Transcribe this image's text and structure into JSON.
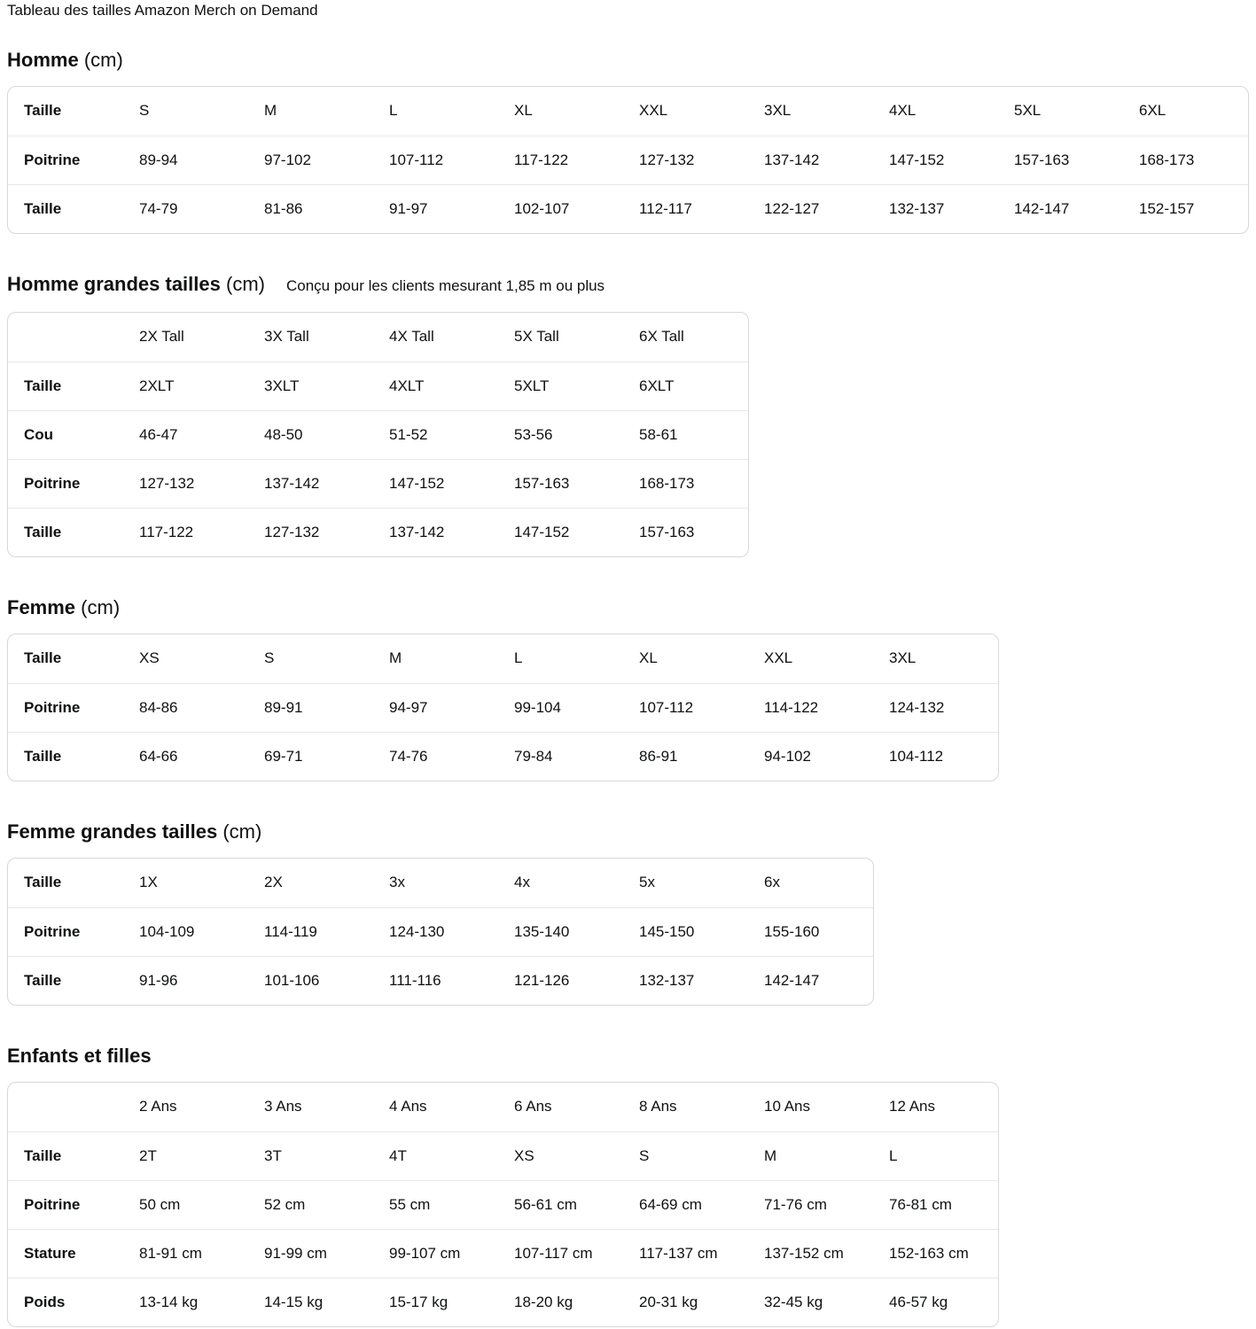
{
  "page_title": "Tableau des tailles Amazon Merch on Demand",
  "colors": {
    "text": "#0F1111",
    "border": "#D5D9D9",
    "separator": "#E7E7E7",
    "background": "#FFFFFF"
  },
  "sections": [
    {
      "title": "Homme",
      "title_suffix": "(cm)",
      "subtitle": "",
      "table": {
        "header": [
          "Taille",
          "S",
          "M",
          "L",
          "XL",
          "XXL",
          "3XL",
          "4XL",
          "5XL",
          "6XL"
        ],
        "rows": [
          {
            "label": "Poitrine",
            "values": [
              "89-94",
              "97-102",
              "107-112",
              "117-122",
              "127-132",
              "137-142",
              "147-152",
              "157-163",
              "168-173"
            ]
          },
          {
            "label": "Taille",
            "values": [
              "74-79",
              "81-86",
              "91-97",
              "102-107",
              "112-117",
              "122-127",
              "132-137",
              "142-147",
              "152-157"
            ]
          }
        ]
      }
    },
    {
      "title": "Homme grandes tailles",
      "title_suffix": "(cm)",
      "subtitle": "Conçu pour les clients mesurant 1,85 m ou plus",
      "table": {
        "header": [
          "",
          "2X Tall",
          "3X Tall",
          "4X Tall",
          "5X Tall",
          "6X Tall"
        ],
        "rows": [
          {
            "label": "Taille",
            "values": [
              "2XLT",
              "3XLT",
              "4XLT",
              "5XLT",
              "6XLT"
            ]
          },
          {
            "label": "Cou",
            "values": [
              "46-47",
              "48-50",
              "51-52",
              "53-56",
              "58-61"
            ]
          },
          {
            "label": "Poitrine",
            "values": [
              "127-132",
              "137-142",
              "147-152",
              "157-163",
              "168-173"
            ]
          },
          {
            "label": "Taille",
            "values": [
              "117-122",
              "127-132",
              "137-142",
              "147-152",
              "157-163"
            ]
          }
        ]
      }
    },
    {
      "title": "Femme",
      "title_suffix": "(cm)",
      "subtitle": "",
      "table": {
        "header": [
          "Taille",
          "XS",
          "S",
          "M",
          "L",
          "XL",
          "XXL",
          "3XL"
        ],
        "rows": [
          {
            "label": "Poitrine",
            "values": [
              "84-86",
              "89-91",
              "94-97",
              "99-104",
              "107-112",
              "114-122",
              "124-132"
            ]
          },
          {
            "label": "Taille",
            "values": [
              "64-66",
              "69-71",
              "74-76",
              "79-84",
              "86-91",
              "94-102",
              "104-112"
            ]
          }
        ]
      }
    },
    {
      "title": "Femme grandes tailles",
      "title_suffix": "(cm)",
      "subtitle": "",
      "table": {
        "header": [
          "Taille",
          "1X",
          "2X",
          "3x",
          "4x",
          "5x",
          "6x"
        ],
        "rows": [
          {
            "label": "Poitrine",
            "values": [
              "104-109",
              "114-119",
              "124-130",
              "135-140",
              "145-150",
              "155-160"
            ]
          },
          {
            "label": "Taille",
            "values": [
              "91-96",
              "101-106",
              "111-116",
              "121-126",
              "132-137",
              "142-147"
            ]
          }
        ]
      }
    },
    {
      "title": "Enfants et filles",
      "title_suffix": "",
      "subtitle": "",
      "table": {
        "header": [
          "",
          "2 Ans",
          "3 Ans",
          "4 Ans",
          "6 Ans",
          "8 Ans",
          "10 Ans",
          "12 Ans"
        ],
        "rows": [
          {
            "label": "Taille",
            "values": [
              "2T",
              "3T",
              "4T",
              "XS",
              "S",
              "M",
              "L"
            ]
          },
          {
            "label": "Poitrine",
            "values": [
              "50 cm",
              "52 cm",
              "55 cm",
              "56-61 cm",
              "64-69 cm",
              "71-76 cm",
              "76-81 cm"
            ]
          },
          {
            "label": "Stature",
            "values": [
              "81-91 cm",
              "91-99 cm",
              "99-107 cm",
              "107-117 cm",
              "117-137 cm",
              "137-152 cm",
              "152-163 cm"
            ]
          },
          {
            "label": "Poids",
            "values": [
              "13-14 kg",
              "14-15 kg",
              "15-17 kg",
              "18-20 kg",
              "20-31 kg",
              "32-45 kg",
              "46-57 kg"
            ]
          }
        ]
      }
    }
  ]
}
